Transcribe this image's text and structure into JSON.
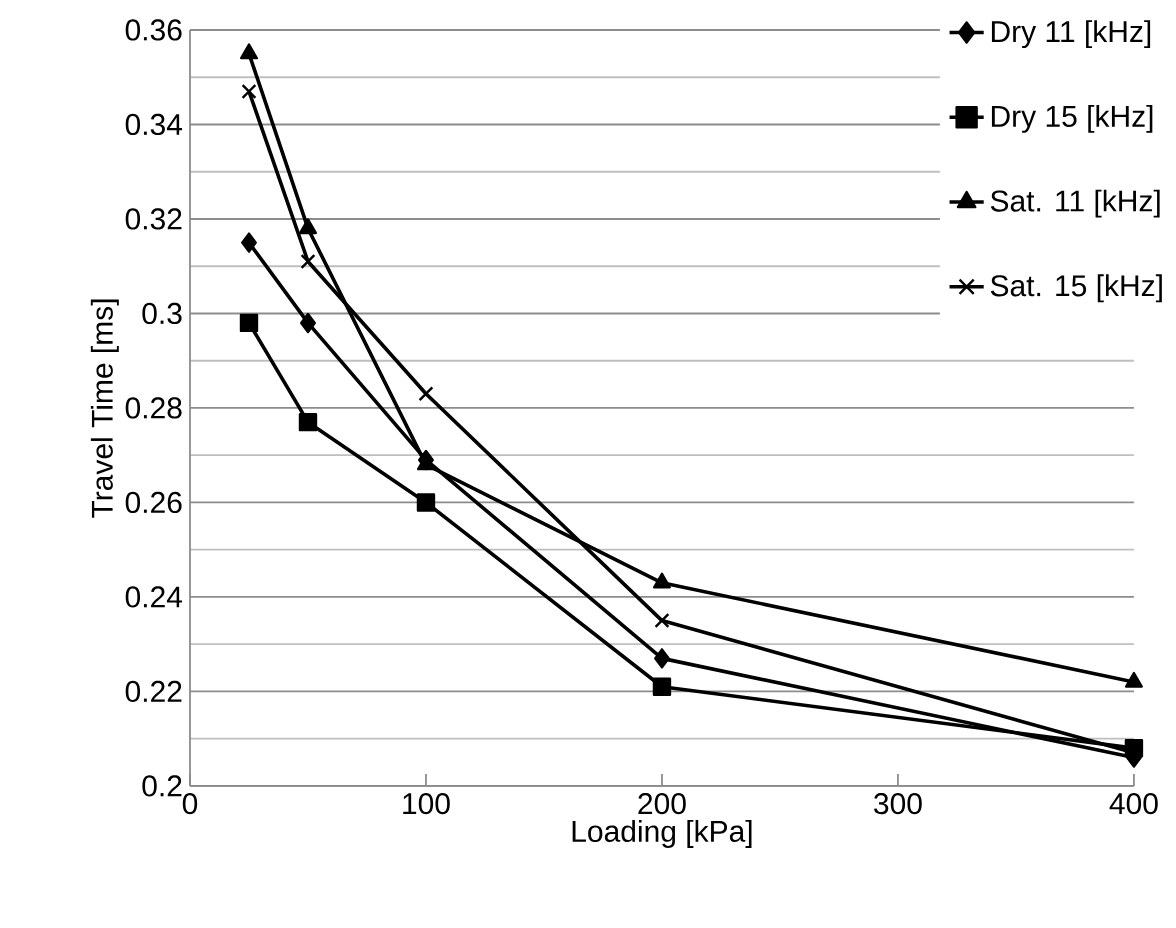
{
  "chart_data": {
    "type": "line",
    "xlabel": "Loading [kPa]",
    "ylabel": "Travel Time [ms]",
    "x": [
      25,
      50,
      100,
      200,
      400
    ],
    "series": [
      {
        "name": "Dry 11 [kHz]",
        "color": "#000000",
        "marker": "diamond",
        "values": [
          0.315,
          0.298,
          0.269,
          0.227,
          0.206
        ]
      },
      {
        "name": "Dry 15 [kHz]",
        "color": "#000000",
        "marker": "square",
        "values": [
          0.298,
          0.277,
          0.26,
          0.221,
          0.208
        ]
      },
      {
        "name": "Sat. 11 [kHz]",
        "color": "#000000",
        "marker": "triangle",
        "values": [
          0.355,
          0.318,
          0.268,
          0.243,
          0.222
        ]
      },
      {
        "name": "Sat. 15 [kHz]",
        "color": "#000000",
        "marker": "cross",
        "values": [
          0.347,
          0.311,
          0.283,
          0.235,
          0.207
        ]
      }
    ],
    "xlim": [
      0,
      400
    ],
    "xticks": [
      0,
      100,
      200,
      300,
      400
    ],
    "ylim": [
      0.2,
      0.36
    ],
    "yticks": [
      0.2,
      0.22,
      0.24,
      0.26,
      0.28,
      0.3,
      0.32,
      0.34,
      0.36
    ],
    "grid": "y",
    "legend": "top right",
    "line_style": "solid"
  }
}
